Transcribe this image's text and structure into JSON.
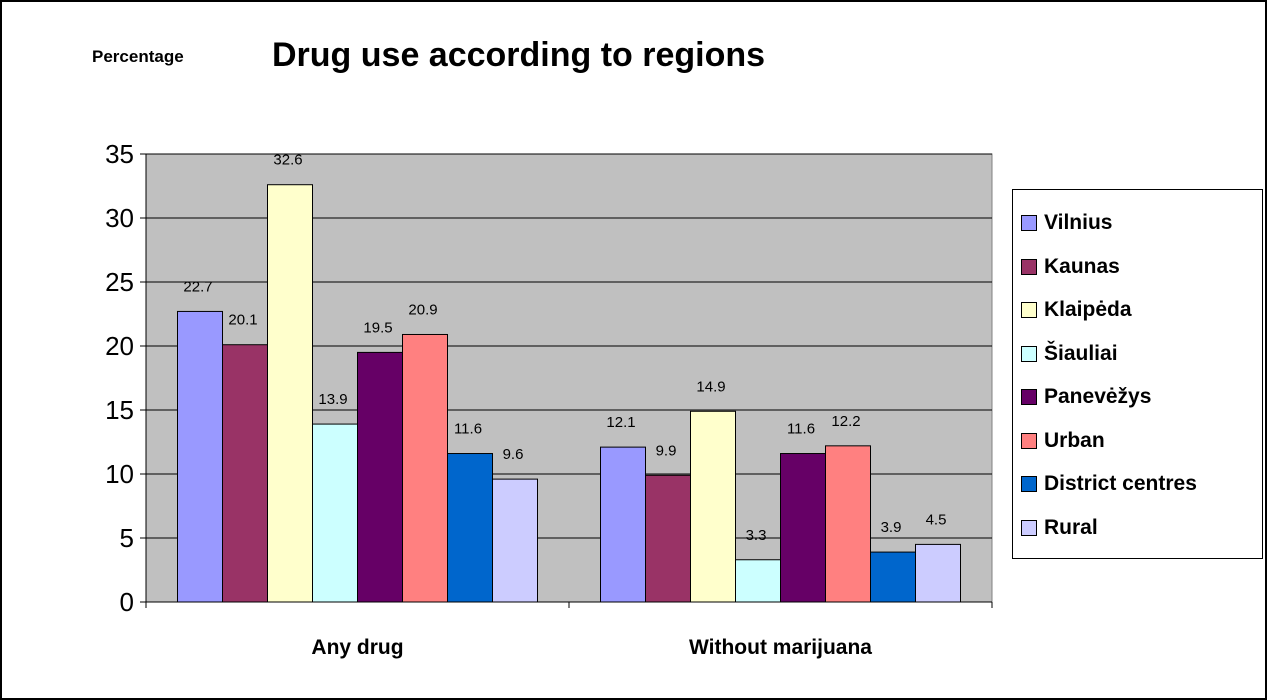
{
  "chart_data": {
    "type": "bar",
    "title": "Drug use according to regions",
    "ylabel": "Percentage",
    "xlabel": "",
    "categories": [
      "Any drug",
      "Without marijuana"
    ],
    "ylim": [
      0,
      35
    ],
    "yticks": [
      0,
      5,
      10,
      15,
      20,
      25,
      30,
      35
    ],
    "grid": true,
    "legend": "right",
    "plot_background": "#c0c0c0",
    "series": [
      {
        "name": "Vilnius",
        "color": "#9999ff",
        "values": [
          22.7,
          12.1
        ]
      },
      {
        "name": "Kaunas",
        "color": "#993366",
        "values": [
          20.1,
          9.9
        ]
      },
      {
        "name": "Klaipėda",
        "color": "#ffffcc",
        "values": [
          32.6,
          14.9
        ]
      },
      {
        "name": "Šiauliai",
        "color": "#ccffff",
        "values": [
          13.9,
          3.3
        ]
      },
      {
        "name": "Panevėžys",
        "color": "#660066",
        "values": [
          19.5,
          11.6
        ]
      },
      {
        "name": "Urban",
        "color": "#ff8080",
        "values": [
          20.9,
          12.2
        ]
      },
      {
        "name": "District centres",
        "color": "#0066cc",
        "values": [
          11.6,
          3.9
        ]
      },
      {
        "name": "Rural",
        "color": "#ccccff",
        "values": [
          9.6,
          4.5
        ]
      }
    ]
  }
}
